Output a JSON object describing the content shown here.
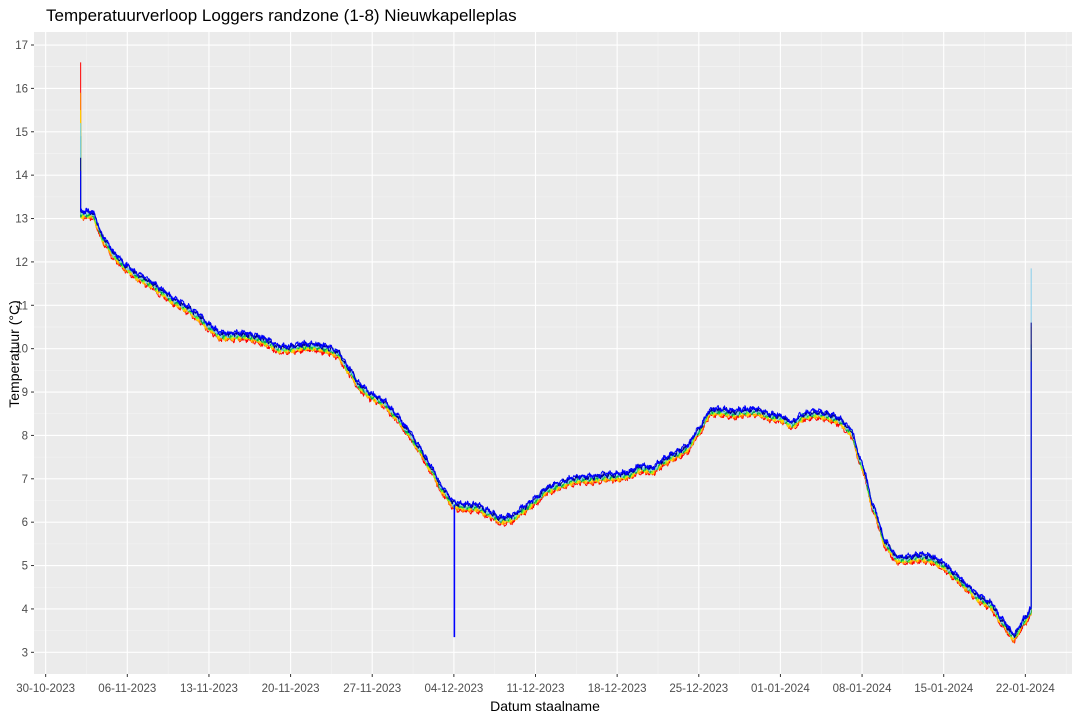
{
  "chart_data": {
    "type": "line",
    "title": "Temperatuurverloop Loggers randzone (1-8) Nieuwkapelleplas",
    "xlabel": "Datum staalname",
    "ylabel": "Temperatuur (°C)",
    "ylim": [
      2.5,
      17.3
    ],
    "y_ticks": [
      3,
      4,
      5,
      6,
      7,
      8,
      9,
      10,
      11,
      12,
      13,
      14,
      15,
      16,
      17
    ],
    "x_ticks": [
      "30-10-2023",
      "06-11-2023",
      "13-11-2023",
      "20-11-2023",
      "27-11-2023",
      "04-12-2023",
      "11-12-2023",
      "18-12-2023",
      "25-12-2023",
      "01-01-2024",
      "08-01-2024",
      "15-01-2024",
      "22-01-2024"
    ],
    "xlim": [
      "2023-10-29",
      "2024-01-26"
    ],
    "grid": true,
    "background": "#EBEBEB",
    "series_colors": [
      "#FF0000",
      "#FF8C00",
      "#FFD700",
      "#66FF33",
      "#00A550",
      "#87CEEB",
      "#00008B",
      "#0000FF"
    ],
    "base_profile": [
      [
        "2023-11-02",
        13.1
      ],
      [
        "2023-11-03",
        13.1
      ],
      [
        "2023-11-04",
        12.5
      ],
      [
        "2023-11-05",
        12.1
      ],
      [
        "2023-11-06",
        11.85
      ],
      [
        "2023-11-07",
        11.65
      ],
      [
        "2023-11-08",
        11.5
      ],
      [
        "2023-11-09",
        11.3
      ],
      [
        "2023-11-10",
        11.1
      ],
      [
        "2023-11-11",
        10.95
      ],
      [
        "2023-11-12",
        10.75
      ],
      [
        "2023-11-13",
        10.5
      ],
      [
        "2023-11-14",
        10.3
      ],
      [
        "2023-11-15",
        10.3
      ],
      [
        "2023-11-16",
        10.3
      ],
      [
        "2023-11-17",
        10.25
      ],
      [
        "2023-11-18",
        10.15
      ],
      [
        "2023-11-19",
        10.0
      ],
      [
        "2023-11-20",
        10.0
      ],
      [
        "2023-11-21",
        10.05
      ],
      [
        "2023-11-22",
        10.05
      ],
      [
        "2023-11-23",
        10.0
      ],
      [
        "2023-11-24",
        9.9
      ],
      [
        "2023-11-25",
        9.5
      ],
      [
        "2023-11-26",
        9.1
      ],
      [
        "2023-11-27",
        8.9
      ],
      [
        "2023-11-28",
        8.75
      ],
      [
        "2023-11-29",
        8.45
      ],
      [
        "2023-11-30",
        8.1
      ],
      [
        "2023-12-01",
        7.7
      ],
      [
        "2023-12-02",
        7.25
      ],
      [
        "2023-12-03",
        6.75
      ],
      [
        "2023-12-04",
        6.4
      ],
      [
        "2023-12-05",
        6.35
      ],
      [
        "2023-12-06",
        6.35
      ],
      [
        "2023-12-07",
        6.2
      ],
      [
        "2023-12-08",
        6.05
      ],
      [
        "2023-12-09",
        6.1
      ],
      [
        "2023-12-10",
        6.3
      ],
      [
        "2023-12-11",
        6.5
      ],
      [
        "2023-12-12",
        6.75
      ],
      [
        "2023-12-13",
        6.85
      ],
      [
        "2023-12-14",
        6.95
      ],
      [
        "2023-12-15",
        7.0
      ],
      [
        "2023-12-16",
        7.0
      ],
      [
        "2023-12-17",
        7.05
      ],
      [
        "2023-12-18",
        7.05
      ],
      [
        "2023-12-19",
        7.1
      ],
      [
        "2023-12-20",
        7.25
      ],
      [
        "2023-12-21",
        7.2
      ],
      [
        "2023-12-22",
        7.4
      ],
      [
        "2023-12-23",
        7.55
      ],
      [
        "2023-12-24",
        7.7
      ],
      [
        "2023-12-25",
        8.1
      ],
      [
        "2023-12-26",
        8.55
      ],
      [
        "2023-12-27",
        8.55
      ],
      [
        "2023-12-28",
        8.5
      ],
      [
        "2023-12-29",
        8.55
      ],
      [
        "2023-12-30",
        8.55
      ],
      [
        "2023-12-31",
        8.45
      ],
      [
        "2024-01-01",
        8.4
      ],
      [
        "2024-01-02",
        8.25
      ],
      [
        "2024-01-03",
        8.45
      ],
      [
        "2024-01-04",
        8.5
      ],
      [
        "2024-01-05",
        8.45
      ],
      [
        "2024-01-06",
        8.35
      ],
      [
        "2024-01-07",
        8.1
      ],
      [
        "2024-01-08",
        7.3
      ],
      [
        "2024-01-09",
        6.3
      ],
      [
        "2024-01-10",
        5.5
      ],
      [
        "2024-01-11",
        5.15
      ],
      [
        "2024-01-12",
        5.15
      ],
      [
        "2024-01-13",
        5.2
      ],
      [
        "2024-01-14",
        5.15
      ],
      [
        "2024-01-15",
        5.0
      ],
      [
        "2024-01-16",
        4.75
      ],
      [
        "2024-01-17",
        4.5
      ],
      [
        "2024-01-18",
        4.25
      ],
      [
        "2024-01-19",
        4.1
      ],
      [
        "2024-01-20",
        3.7
      ],
      [
        "2024-01-21",
        3.35
      ],
      [
        "2024-01-22",
        3.75
      ],
      [
        "2024-01-22T12:00",
        3.95
      ]
    ],
    "start_spike": {
      "x": "2023-11-02",
      "max": [
        16.6,
        15.9,
        15.5,
        15.2,
        14.9,
        15.2,
        14.4,
        14.1
      ]
    },
    "dip_spike": {
      "x": "2023-12-04",
      "min": 3.35
    },
    "end_spike": {
      "x": "2024-01-22T12:00",
      "max": [
        10.0,
        10.2,
        10.5,
        10.0,
        10.1,
        11.85,
        10.6,
        9.7
      ]
    }
  }
}
